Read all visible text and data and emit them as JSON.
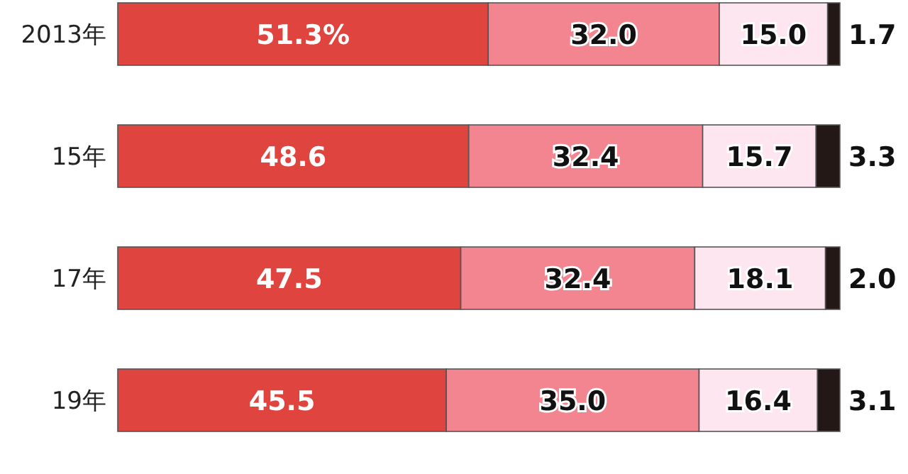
{
  "chart_data": {
    "type": "bar",
    "orientation": "horizontal",
    "stacked": true,
    "categories": [
      "2013年",
      "15年",
      "17年",
      "19年"
    ],
    "series": [
      {
        "color": "#e0443e",
        "values": [
          51.3,
          48.6,
          47.5,
          45.5
        ],
        "value_labels": [
          "51.3%",
          "48.6",
          "47.5",
          "45.5"
        ]
      },
      {
        "color": "#f2858f",
        "values": [
          32.0,
          32.4,
          32.4,
          35.0
        ],
        "value_labels": [
          "32.0",
          "32.4",
          "32.4",
          "35.0"
        ]
      },
      {
        "color": "#fde6ef",
        "values": [
          15.0,
          15.7,
          18.1,
          16.4
        ],
        "value_labels": [
          "15.0",
          "15.7",
          "18.1",
          "16.4"
        ]
      },
      {
        "color": "#231815",
        "values": [
          1.7,
          3.3,
          2.0,
          3.1
        ],
        "value_labels": [
          "1.7",
          "3.3",
          "2.0",
          "3.1"
        ]
      }
    ]
  }
}
